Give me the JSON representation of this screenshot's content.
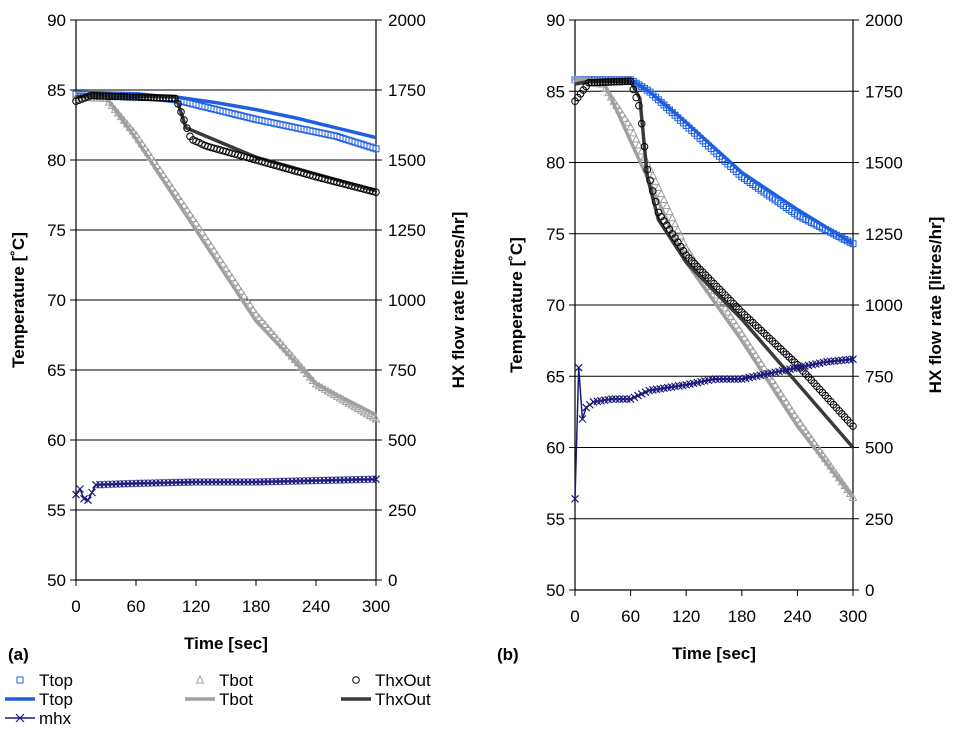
{
  "colors": {
    "ttop": "#1f5fe0",
    "tbot": "#a0a0a0",
    "thxout": "#3a3a3a",
    "mhx": "#1a1a7a"
  },
  "legend": {
    "items": [
      {
        "label": "Ttop",
        "kind": "marker-square",
        "color": "#1f5fe0"
      },
      {
        "label": "Tbot",
        "kind": "marker-triangle",
        "color": "#a0a0a0"
      },
      {
        "label": "ThxOut",
        "kind": "marker-circle",
        "color": "#000000"
      },
      {
        "label": "Ttop",
        "kind": "line",
        "color": "#1f5fe0"
      },
      {
        "label": "Tbot",
        "kind": "line",
        "color": "#a0a0a0"
      },
      {
        "label": "ThxOut",
        "kind": "line",
        "color": "#3a3a3a"
      },
      {
        "label": "mhx",
        "kind": "line-x",
        "color": "#1a1a7a"
      }
    ]
  },
  "chart_data": [
    {
      "panel_label": "(a)",
      "type": "line",
      "xlabel": "Time [sec]",
      "ylabel": "Temperature [˚C]",
      "y2label": "HX flow rate [litres/hr]",
      "xlim": [
        0,
        300
      ],
      "ylim": [
        50,
        90
      ],
      "y2lim": [
        0,
        2000
      ],
      "xticks": [
        0,
        60,
        120,
        180,
        240,
        300
      ],
      "yticks": [
        50,
        55,
        60,
        65,
        70,
        75,
        80,
        85,
        90
      ],
      "y2ticks": [
        0,
        250,
        500,
        750,
        1000,
        1250,
        1500,
        1750,
        2000
      ],
      "grid": "horizontal",
      "series": [
        {
          "name": "Ttop",
          "style": "line",
          "x": [
            0,
            60,
            100,
            140,
            180,
            220,
            260,
            300
          ],
          "y": [
            84.7,
            84.6,
            84.5,
            84.1,
            83.6,
            83.0,
            82.3,
            81.6
          ]
        },
        {
          "name": "Ttop",
          "style": "marker-square",
          "x": [
            0,
            60,
            100,
            140,
            180,
            220,
            260,
            300
          ],
          "y": [
            84.7,
            84.6,
            84.3,
            83.6,
            82.9,
            82.3,
            81.7,
            80.8
          ]
        },
        {
          "name": "Tbot",
          "style": "line",
          "x": [
            0,
            30,
            60,
            120,
            180,
            240,
            300
          ],
          "y": [
            84.5,
            84.5,
            81.5,
            75.0,
            68.5,
            64.0,
            61.8
          ]
        },
        {
          "name": "Tbot",
          "style": "marker-triangle",
          "x": [
            0,
            30,
            60,
            120,
            180,
            240,
            300
          ],
          "y": [
            84.5,
            84.4,
            81.8,
            75.5,
            69.0,
            64.0,
            61.5
          ]
        },
        {
          "name": "ThxOut",
          "style": "line",
          "x": [
            0,
            15,
            100,
            110,
            130,
            180,
            240,
            300
          ],
          "y": [
            84.5,
            84.6,
            84.5,
            82.3,
            81.7,
            80.2,
            79.0,
            77.8
          ]
        },
        {
          "name": "ThxOut",
          "style": "marker-circle",
          "x": [
            0,
            15,
            100,
            115,
            130,
            180,
            240,
            300
          ],
          "y": [
            84.2,
            84.6,
            84.4,
            81.5,
            81.0,
            80.0,
            78.8,
            77.7
          ]
        },
        {
          "name": "mhx",
          "style": "line-x",
          "axis": "y2",
          "x": [
            0,
            4,
            8,
            12,
            20,
            60,
            120,
            180,
            240,
            300
          ],
          "y": [
            305,
            325,
            290,
            285,
            340,
            345,
            350,
            350,
            355,
            360
          ]
        }
      ]
    },
    {
      "panel_label": "(b)",
      "type": "line",
      "xlabel": "Time [sec]",
      "ylabel": "Temperature [˚C]",
      "y2label": "HX flow rate [litres/hr]",
      "xlim": [
        0,
        300
      ],
      "ylim": [
        50,
        90
      ],
      "y2lim": [
        0,
        2000
      ],
      "xticks": [
        0,
        60,
        120,
        180,
        240,
        300
      ],
      "yticks": [
        50,
        55,
        60,
        65,
        70,
        75,
        80,
        85,
        90
      ],
      "y2ticks": [
        0,
        250,
        500,
        750,
        1000,
        1250,
        1500,
        1750,
        2000
      ],
      "grid": "horizontal",
      "series": [
        {
          "name": "Ttop",
          "style": "line",
          "x": [
            0,
            60,
            80,
            120,
            180,
            240,
            300
          ],
          "y": [
            85.8,
            85.8,
            85.0,
            82.8,
            79.3,
            76.7,
            74.3
          ]
        },
        {
          "name": "Ttop",
          "style": "marker-square",
          "x": [
            0,
            60,
            80,
            120,
            180,
            240,
            300
          ],
          "y": [
            85.8,
            85.8,
            85.0,
            82.6,
            79.0,
            76.3,
            74.3
          ]
        },
        {
          "name": "Tbot",
          "style": "line",
          "x": [
            0,
            30,
            60,
            120,
            180,
            240,
            300
          ],
          "y": [
            85.8,
            85.8,
            81.5,
            73.0,
            67.5,
            61.5,
            56.5
          ]
        },
        {
          "name": "Tbot",
          "style": "marker-triangle",
          "x": [
            0,
            30,
            60,
            120,
            180,
            240,
            300
          ],
          "y": [
            85.8,
            85.5,
            82.5,
            74.0,
            68.0,
            62.0,
            56.5
          ]
        },
        {
          "name": "ThxOut",
          "style": "line",
          "x": [
            0,
            15,
            60,
            70,
            78,
            90,
            120,
            180,
            240,
            300
          ],
          "y": [
            85.5,
            85.7,
            85.7,
            84.5,
            79.0,
            76.0,
            73.0,
            69.0,
            64.5,
            60.0
          ]
        },
        {
          "name": "ThxOut",
          "style": "marker-circle",
          "x": [
            0,
            15,
            60,
            70,
            78,
            90,
            120,
            180,
            240,
            300
          ],
          "y": [
            84.3,
            85.6,
            85.7,
            83.8,
            79.5,
            76.5,
            73.5,
            69.5,
            65.8,
            61.5
          ]
        },
        {
          "name": "mhx",
          "style": "line-x",
          "axis": "y2",
          "x": [
            0,
            4,
            8,
            12,
            20,
            40,
            60,
            80,
            120,
            150,
            180,
            210,
            240,
            270,
            300
          ],
          "y": [
            320,
            780,
            600,
            640,
            660,
            670,
            670,
            700,
            720,
            740,
            740,
            760,
            780,
            800,
            810
          ]
        }
      ]
    }
  ]
}
